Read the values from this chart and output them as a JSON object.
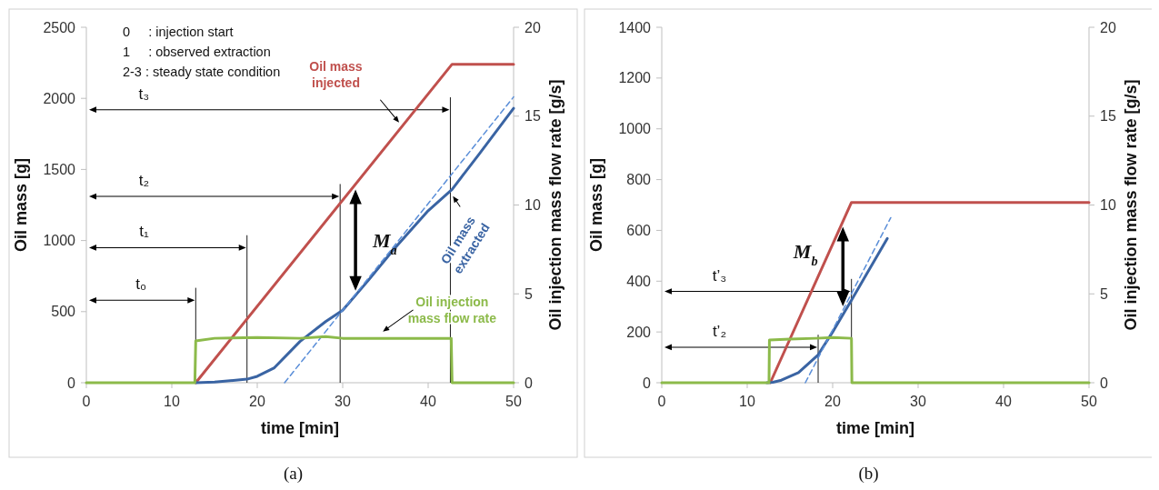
{
  "chart_data": [
    {
      "type": "line",
      "xlabel": "time [min]",
      "ylabel": "Oil mass [g]",
      "y2label": "Oil injection mass flow rate [g/s]",
      "xlim": [
        0,
        50
      ],
      "xticks": [
        0,
        10,
        20,
        30,
        40,
        50
      ],
      "ylim": [
        0,
        2500
      ],
      "yticks": [
        0,
        500,
        1000,
        1500,
        2000,
        2500
      ],
      "y2lim": [
        0,
        20
      ],
      "y2ticks": [
        0,
        5,
        10,
        15,
        20
      ],
      "grid": false,
      "series": [
        {
          "name": "Oil mass injected",
          "color": "#c0504d",
          "x": [
            12.8,
            42.8,
            50
          ],
          "values": [
            0,
            2240,
            2240
          ]
        },
        {
          "name": "Oil mass extracted",
          "color": "#3a64a3",
          "x": [
            12.8,
            15,
            18.8,
            20,
            22,
            25,
            28,
            30,
            33,
            36,
            40,
            42.8,
            46,
            50
          ],
          "values": [
            0,
            5,
            25,
            45,
            105,
            290,
            430,
            510,
            720,
            940,
            1210,
            1360,
            1610,
            1930
          ]
        },
        {
          "color": "#5a8ed8",
          "line_style": "dashed",
          "x": [
            23.2,
            50
          ],
          "values": [
            0,
            2010
          ]
        },
        {
          "name": "Oil injection mass flow rate",
          "color": "#8cba4a",
          "axis": "y2",
          "x": [
            0,
            12.7,
            12.8,
            15,
            20,
            25,
            28,
            30,
            35,
            40,
            42.7,
            42.8,
            50
          ],
          "values": [
            0,
            0,
            2.35,
            2.5,
            2.55,
            2.5,
            2.6,
            2.5,
            2.5,
            2.5,
            2.5,
            0,
            0
          ]
        }
      ],
      "ref_lines": [
        {
          "axis": "x",
          "value": 12.8
        },
        {
          "axis": "x",
          "value": 18.8
        },
        {
          "axis": "x",
          "value": 29.7
        },
        {
          "axis": "x",
          "value": 42.6
        }
      ],
      "annotations": [
        "0     : injection start",
        "1     : observed extraction",
        "2-3 : steady state condition",
        "t₀",
        "t₁",
        "t₂",
        "t₃",
        "M$_{a}$",
        "(a)"
      ]
    },
    {
      "type": "line",
      "xlabel": "time [min]",
      "ylabel": "Oil mass [g]",
      "y2label": "Oil injection mass flow rate [g/s]",
      "xlim": [
        0,
        50
      ],
      "xticks": [
        0,
        10,
        20,
        30,
        40,
        50
      ],
      "ylim": [
        0,
        1400
      ],
      "yticks": [
        0,
        200,
        400,
        600,
        800,
        1000,
        1200,
        1400
      ],
      "y2lim": [
        0,
        20
      ],
      "y2ticks": [
        0,
        5,
        10,
        15,
        20
      ],
      "grid": false,
      "series": [
        {
          "color": "#c0504d",
          "x": [
            12.7,
            22.2,
            50
          ],
          "values": [
            0,
            710,
            710
          ]
        },
        {
          "color": "#3a64a3",
          "x": [
            12.3,
            13,
            14,
            16,
            18.3,
            20,
            22.2,
            24,
            26.4
          ],
          "values": [
            0,
            2,
            10,
            40,
            110,
            200,
            325,
            430,
            568
          ]
        },
        {
          "color": "#5a8ed8",
          "line_style": "dashed",
          "x": [
            16.8,
            26.8
          ],
          "values": [
            0,
            650
          ]
        },
        {
          "color": "#8cba4a",
          "axis": "y2",
          "x": [
            0,
            12.55,
            12.6,
            15,
            18,
            20,
            22.2,
            22.25,
            50
          ],
          "values": [
            0,
            0,
            2.4,
            2.45,
            2.5,
            2.55,
            2.5,
            0,
            0
          ]
        }
      ],
      "ref_lines": [
        {
          "axis": "x",
          "value": 18.3
        },
        {
          "axis": "x",
          "value": 22.2
        }
      ],
      "annotations": [
        "t’₂",
        "t’₃",
        "M$_{b}$",
        "(b)"
      ]
    }
  ]
}
